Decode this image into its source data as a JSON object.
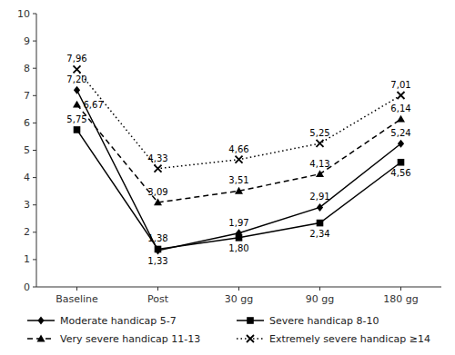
{
  "chart_data": {
    "type": "line",
    "categories": [
      "Baseline",
      "Post",
      "30 gg",
      "90 gg",
      "180 gg"
    ],
    "series": [
      {
        "name": "Moderate handicap 5-7",
        "color": "#000000",
        "marker": "diamond",
        "line_style": "solid",
        "values": [
          7.2,
          1.33,
          1.97,
          2.91,
          5.24
        ],
        "value_labels": [
          "7,20",
          "1,33",
          "1,97",
          "2,91",
          "5,24"
        ]
      },
      {
        "name": "Severe handicap 8-10",
        "color": "#000000",
        "marker": "square",
        "line_style": "solid",
        "values": [
          5.75,
          1.38,
          1.8,
          2.34,
          4.56
        ],
        "value_labels": [
          "5,75",
          "1,38",
          "1,80",
          "2,34",
          "4,56"
        ]
      },
      {
        "name": "Very severe handicap 11-13",
        "color": "#000000",
        "marker": "triangle",
        "line_style": "dashed",
        "values": [
          6.67,
          3.09,
          3.51,
          4.13,
          6.14
        ],
        "value_labels": [
          "6,67",
          "3,09",
          "3,51",
          "4,13",
          "6,14"
        ]
      },
      {
        "name": "Extremely severe handicap ≥14",
        "color": "#000000",
        "marker": "x",
        "line_style": "dotted",
        "values": [
          7.96,
          4.33,
          4.66,
          5.25,
          7.01
        ],
        "value_labels": [
          "7,96",
          "4,33",
          "4,66",
          "5,25",
          "7,01"
        ]
      }
    ],
    "ylim": [
      0,
      10
    ],
    "yticks": [
      0,
      1,
      2,
      3,
      4,
      5,
      6,
      7,
      8,
      9,
      10
    ],
    "data_labels": true,
    "grid": false,
    "legend": "bottom"
  }
}
